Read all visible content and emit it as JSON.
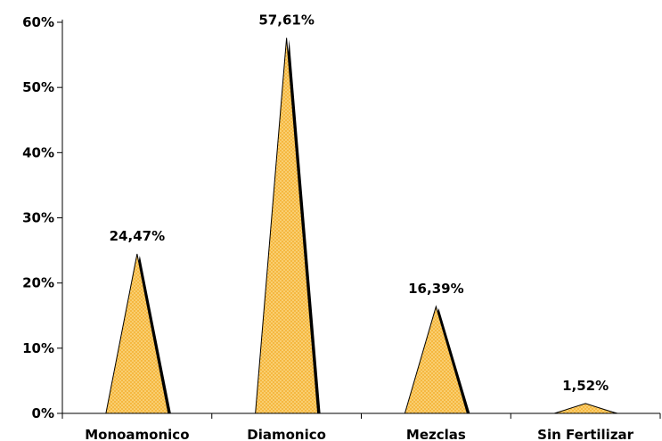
{
  "chart_data": {
    "type": "bar",
    "bar_shape": "triangle",
    "categories": [
      "Monoamonico",
      "Diamonico",
      "Mezclas",
      "Sin Fertilizar"
    ],
    "values": [
      24.47,
      57.61,
      16.39,
      1.52
    ],
    "data_labels": [
      "24,47%",
      "57,61%",
      "16,39%",
      "1,52%"
    ],
    "title": "",
    "xlabel": "",
    "ylabel": "",
    "ylim": [
      0,
      60
    ],
    "yticks": [
      0,
      10,
      20,
      30,
      40,
      50,
      60
    ],
    "ytick_labels": [
      "0%",
      "10%",
      "20%",
      "30%",
      "40%",
      "50%",
      "60%"
    ],
    "grid": false,
    "legend": "none",
    "colors": {
      "fill": "#F5B841",
      "pattern": "#FFE9A8",
      "outline": "#000000"
    }
  }
}
